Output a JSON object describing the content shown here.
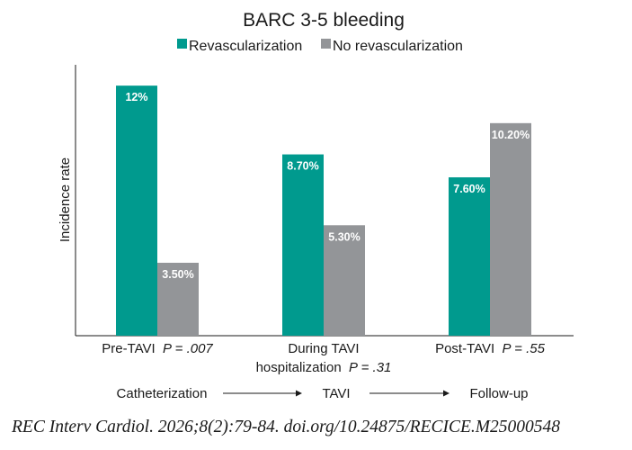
{
  "chart_data": {
    "type": "bar",
    "title": "BARC 3-5 bleeding",
    "ylabel": "Incidence rate",
    "xlabel": "",
    "grid": false,
    "legend_position": "top-center",
    "categories": [
      {
        "lines": [
          {
            "text": "Pre-TAVI",
            "p": "P = .007"
          }
        ]
      },
      {
        "lines": [
          {
            "text": "During TAVI",
            "p": ""
          },
          {
            "text": "hospitalization",
            "p": "P = .31"
          }
        ]
      },
      {
        "lines": [
          {
            "text": "Post-TAVI",
            "p": "P = .55"
          }
        ]
      }
    ],
    "series": [
      {
        "name": "Revascularization",
        "color": "#009a8e",
        "values": [
          12,
          8.7,
          7.6
        ],
        "labels": [
          "12%",
          "8.70%",
          "7.60%"
        ]
      },
      {
        "name": "No revascularization",
        "color": "#939598",
        "values": [
          3.5,
          5.3,
          10.2
        ],
        "labels": [
          "3.50%",
          "5.30%",
          "10.20%"
        ]
      }
    ],
    "ylim": [
      0,
      13
    ],
    "timeline": {
      "steps": [
        "Catheterization",
        "TAVI",
        "Follow-up"
      ]
    }
  },
  "footer": {
    "citation": "REC Interv Cardiol. 2026;8(2):79-84. doi.org/10.24875/RECICE.M25000548"
  }
}
